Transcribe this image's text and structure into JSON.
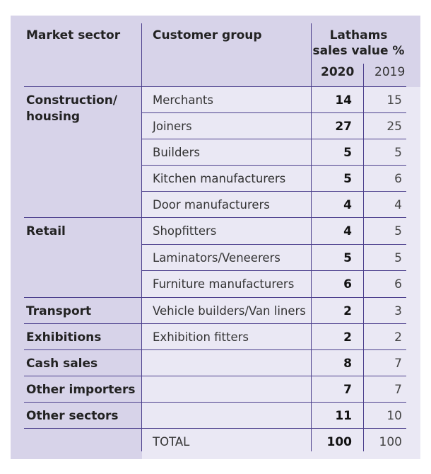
{
  "header": {
    "market_sector": "Market sector",
    "customer_group": "Customer group",
    "sales_line1": "Lathams",
    "sales_line2": "sales value %",
    "year_2020": "2020",
    "year_2019": "2019"
  },
  "sectors": [
    {
      "line1": "Construction/",
      "line2": "housing"
    },
    {
      "line1": "Retail"
    },
    {
      "line1": "Transport"
    },
    {
      "line1": "Exhibitions"
    },
    {
      "line1": "Cash sales"
    },
    {
      "line1": "Other importers"
    },
    {
      "line1": "Other sectors"
    }
  ],
  "rows": [
    {
      "group": "Merchants",
      "v2020": "14",
      "v2019": "15"
    },
    {
      "group": "Joiners",
      "v2020": "27",
      "v2019": "25"
    },
    {
      "group": "Builders",
      "v2020": "5",
      "v2019": "5"
    },
    {
      "group": "Kitchen manufacturers",
      "v2020": "5",
      "v2019": "6"
    },
    {
      "group": "Door manufacturers",
      "v2020": "4",
      "v2019": "4"
    },
    {
      "group": "Shopfitters",
      "v2020": "4",
      "v2019": "5"
    },
    {
      "group": "Laminators/Veneerers",
      "v2020": "5",
      "v2019": "5"
    },
    {
      "group": "Furniture manufacturers",
      "v2020": "6",
      "v2019": "6"
    },
    {
      "group": "Vehicle builders/Van liners",
      "v2020": "2",
      "v2019": "3"
    },
    {
      "group": "Exhibition fitters",
      "v2020": "2",
      "v2019": "2"
    },
    {
      "group": "",
      "v2020": "8",
      "v2019": "7"
    },
    {
      "group": "",
      "v2020": "7",
      "v2019": "7"
    },
    {
      "group": "",
      "v2020": "11",
      "v2019": "10"
    },
    {
      "group": "TOTAL",
      "v2020": "100",
      "v2019": "100"
    }
  ]
}
